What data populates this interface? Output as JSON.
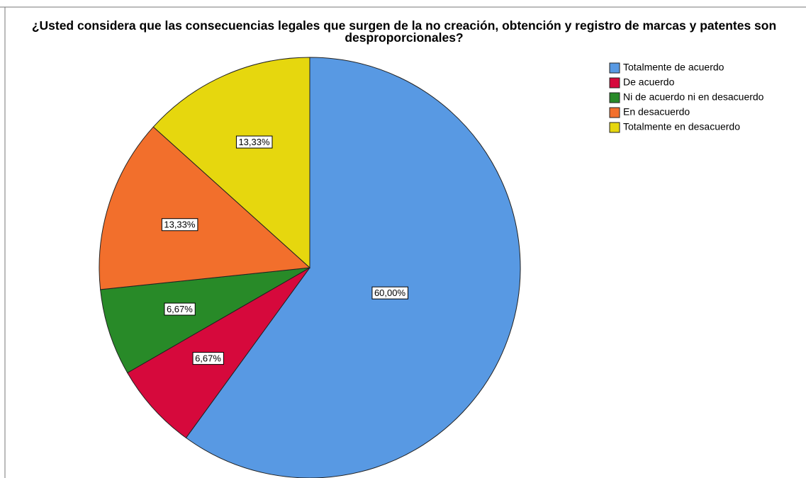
{
  "chart_data": {
    "type": "pie",
    "title": "¿Usted considera que las consecuencias legales que surgen de la no creación, obtención y registro de marcas y patentes son desproporcionales?",
    "categories": [
      "Totalmente de acuerdo",
      "De acuerdo",
      "Ni de acuerdo ni en desacuerdo",
      "En desacuerdo",
      "Totalmente en desacuerdo"
    ],
    "values": [
      60,
      6.67,
      6.67,
      13.33,
      13.33
    ],
    "value_labels": [
      "60,00%",
      "6,67%",
      "6,67%",
      "13,33%",
      "13,33%"
    ],
    "colors": [
      "#5899e3",
      "#d6093c",
      "#288a28",
      "#f26f2c",
      "#e6d70e"
    ],
    "legend": "top-right"
  }
}
